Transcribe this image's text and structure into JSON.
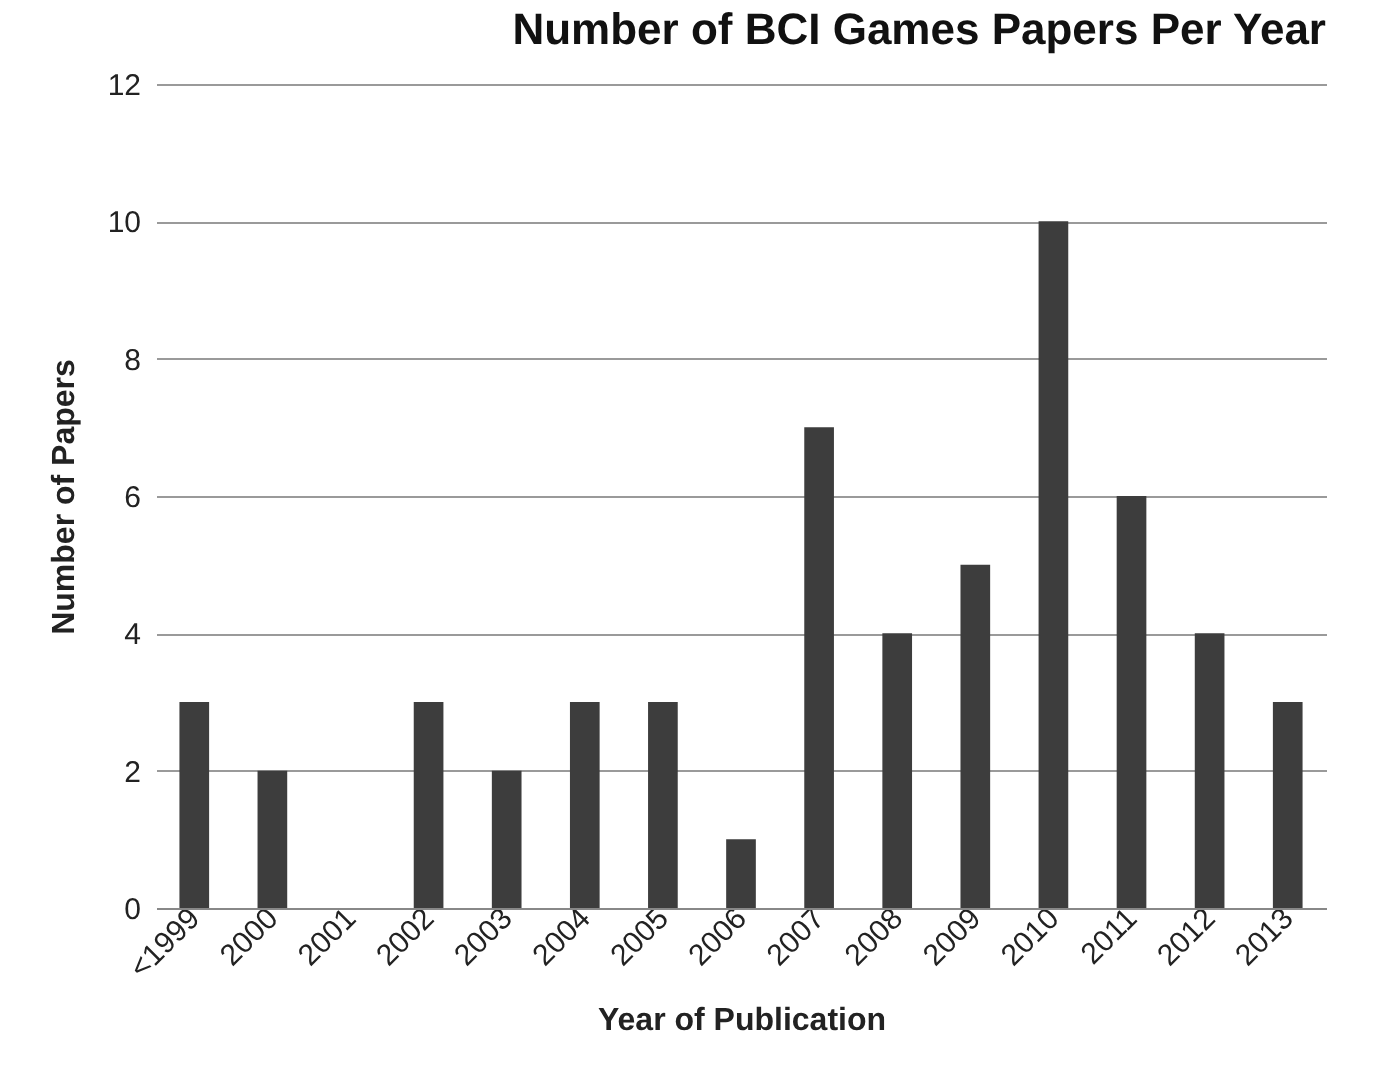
{
  "chart_data": {
    "type": "bar",
    "title": "Number of BCI Games Papers Per Year",
    "xlabel": "Year of Publication",
    "ylabel": "Number of Papers",
    "categories": [
      "<1999",
      "2000",
      "2001",
      "2002",
      "2003",
      "2004",
      "2005",
      "2006",
      "2007",
      "2008",
      "2009",
      "2010",
      "2011",
      "2012",
      "2013"
    ],
    "values": [
      3,
      2,
      0,
      3,
      2,
      3,
      3,
      1,
      7,
      4,
      5,
      10,
      6,
      4,
      3
    ],
    "color": "#3d3d3d",
    "ylim": [
      0,
      12
    ],
    "yticks": [
      0,
      2,
      4,
      6,
      8,
      10,
      12
    ],
    "grid": "y"
  }
}
